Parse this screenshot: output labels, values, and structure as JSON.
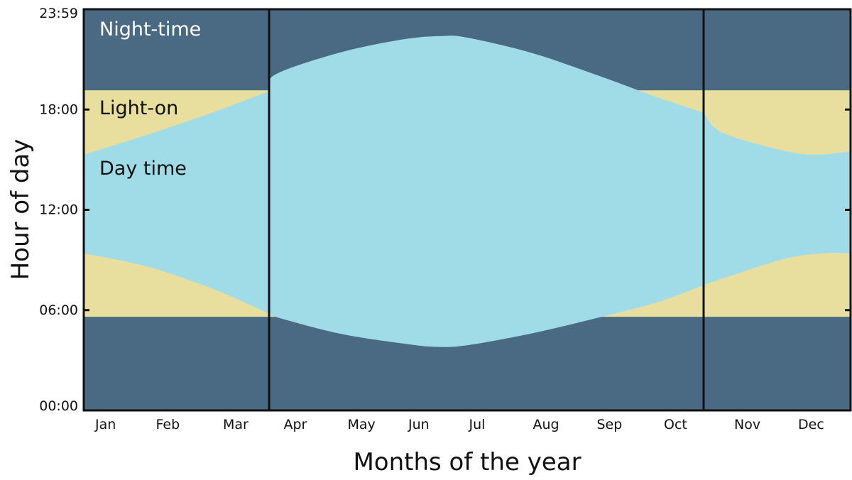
{
  "chart_data": {
    "type": "area",
    "xlabel": "Months of the year",
    "ylabel": "Hour of day",
    "months": [
      "Jan",
      "Feb",
      "Mar",
      "Apr",
      "May",
      "Jun",
      "Jul",
      "Aug",
      "Sep",
      "Oct",
      "Nov",
      "Dec"
    ],
    "x_unit": "months",
    "xlim": [
      0,
      12
    ],
    "y_ticks": [
      "00:00",
      "06:00",
      "12:00",
      "18:00",
      "23:59"
    ],
    "ylim_hours": [
      0,
      24
    ],
    "region_labels": {
      "night": "Night-time",
      "light": "Light-on",
      "day": "Day time"
    },
    "colors": {
      "night": "#4a6983",
      "light": "#e8df9f",
      "day": "#a0dbe8",
      "frame": "#111111"
    },
    "lights_on_window_hours": [
      5.6,
      19.15
    ],
    "season_dividers_months": [
      2.9,
      9.7
    ],
    "sunrise_hours": [
      [
        0,
        9.4
      ],
      [
        1,
        8.6
      ],
      [
        2,
        7.3
      ],
      [
        2.9,
        5.8
      ],
      [
        3,
        5.6
      ],
      [
        4,
        4.6
      ],
      [
        5,
        4.0
      ],
      [
        5.5,
        3.8
      ],
      [
        6,
        3.9
      ],
      [
        7,
        4.6
      ],
      [
        8,
        5.5
      ],
      [
        9,
        6.5
      ],
      [
        9.7,
        7.5
      ],
      [
        10,
        7.9
      ],
      [
        11,
        9.1
      ],
      [
        11.6,
        9.4
      ],
      [
        12,
        9.4
      ]
    ],
    "sunset_hours": [
      [
        0,
        15.3
      ],
      [
        1,
        16.5
      ],
      [
        2,
        17.8
      ],
      [
        2.9,
        19.1
      ],
      [
        3,
        20.1
      ],
      [
        4,
        21.4
      ],
      [
        5,
        22.2
      ],
      [
        5.6,
        22.4
      ],
      [
        6,
        22.3
      ],
      [
        7,
        21.4
      ],
      [
        8,
        20.1
      ],
      [
        9,
        18.7
      ],
      [
        9.7,
        17.8
      ],
      [
        10,
        16.6
      ],
      [
        11,
        15.5
      ],
      [
        11.5,
        15.3
      ],
      [
        12,
        15.5
      ]
    ]
  }
}
